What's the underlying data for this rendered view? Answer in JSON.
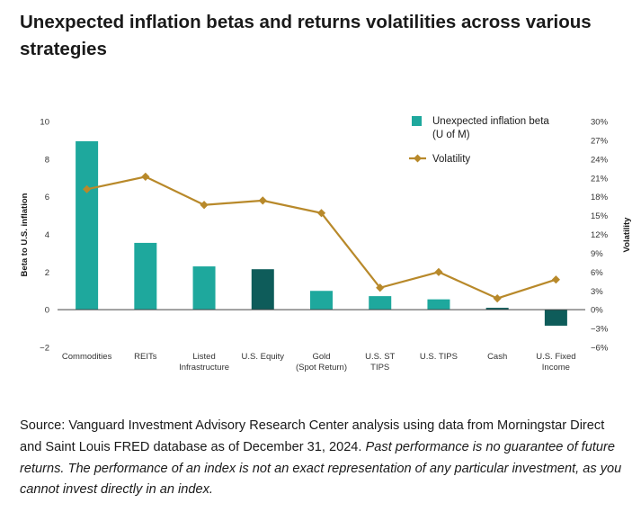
{
  "header": {
    "title": "Unexpected inflation betas and returns volatilities across various strategies"
  },
  "chart_data": {
    "type": "bar",
    "categories": [
      [
        "Commodities"
      ],
      [
        "REITs"
      ],
      [
        "Listed",
        "Infrastructure"
      ],
      [
        "U.S. Equity"
      ],
      [
        "Gold",
        "(Spot Return)"
      ],
      [
        "U.S. ST",
        "TIPS"
      ],
      [
        "U.S. TIPS"
      ],
      [
        "Cash"
      ],
      [
        "U.S. Fixed",
        "Income"
      ]
    ],
    "series": [
      {
        "name": "Unexpected inflation beta (U of M)",
        "legend_lines": [
          "Unexpected inflation beta",
          "(U of M)"
        ],
        "type": "bar",
        "axis": "left",
        "values": [
          8.95,
          3.55,
          2.3,
          2.15,
          1.0,
          0.72,
          0.55,
          0.1,
          -0.85
        ],
        "colors": [
          "#1ea89d",
          "#1ea89d",
          "#1ea89d",
          "#0e5c5a",
          "#1ea89d",
          "#1ea89d",
          "#1ea89d",
          "#0e5c5a",
          "#0e5c5a"
        ],
        "legend_color": "#1ea89d"
      },
      {
        "name": "Volatility",
        "type": "line",
        "axis": "right",
        "values": [
          19.2,
          21.2,
          16.7,
          17.4,
          15.4,
          3.5,
          6.0,
          1.8,
          4.8
        ],
        "color": "#b8892a"
      }
    ],
    "ylabel": "Beta to U.S. inflation",
    "y2label": "Volatility",
    "ylim": [
      -2,
      10
    ],
    "yticks": [
      "10",
      "8",
      "6",
      "4",
      "2",
      "0",
      "−2"
    ],
    "y2lim": [
      -6,
      30
    ],
    "y2ticks": [
      "30%",
      "27%",
      "24%",
      "21%",
      "18%",
      "15%",
      "12%",
      "9%",
      "6%",
      "3%",
      "0%",
      "−3%",
      "−6%"
    ],
    "grid": false,
    "legend_position": "top-right"
  },
  "footer": {
    "source": "Source: Vanguard Investment Advisory Research Center analysis using data from Morningstar Direct and Saint Louis FRED database as of December 31, 2024.",
    "note": "Past performance is no guarantee of future returns. The performance of an index is not an exact representation of any particular investment, as you cannot invest directly in an index."
  }
}
